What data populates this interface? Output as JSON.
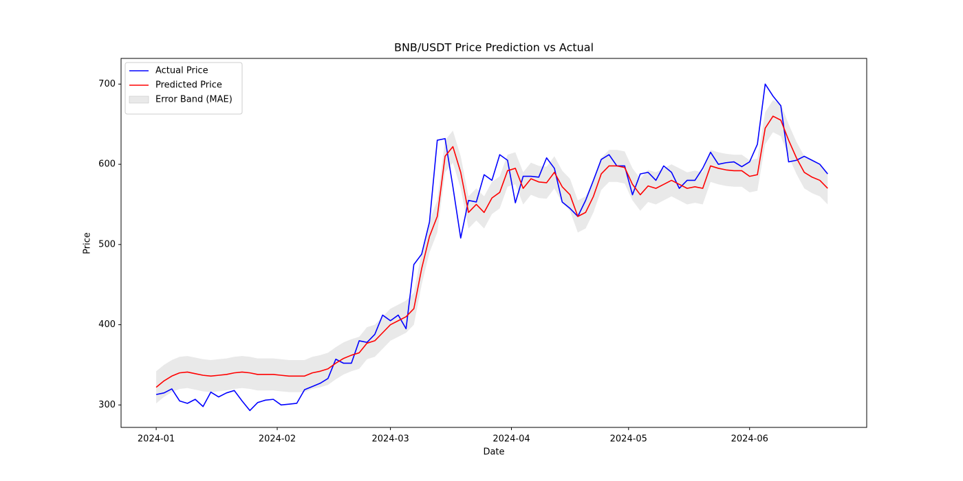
{
  "chart_data": {
    "type": "line",
    "title": "BNB/USDT Price Prediction vs Actual",
    "x_label": "Date",
    "y_label": "Price",
    "x": [
      "2024-01-01",
      "2024-01-03",
      "2024-01-05",
      "2024-01-07",
      "2024-01-09",
      "2024-01-11",
      "2024-01-13",
      "2024-01-15",
      "2024-01-17",
      "2024-01-19",
      "2024-01-21",
      "2024-01-23",
      "2024-01-25",
      "2024-01-27",
      "2024-01-29",
      "2024-01-31",
      "2024-02-02",
      "2024-02-04",
      "2024-02-06",
      "2024-02-08",
      "2024-02-10",
      "2024-02-12",
      "2024-02-14",
      "2024-02-16",
      "2024-02-18",
      "2024-02-20",
      "2024-02-22",
      "2024-02-24",
      "2024-02-26",
      "2024-02-28",
      "2024-03-01",
      "2024-03-03",
      "2024-03-05",
      "2024-03-07",
      "2024-03-09",
      "2024-03-11",
      "2024-03-13",
      "2024-03-15",
      "2024-03-17",
      "2024-03-19",
      "2024-03-21",
      "2024-03-23",
      "2024-03-25",
      "2024-03-27",
      "2024-03-29",
      "2024-03-31",
      "2024-04-02",
      "2024-04-04",
      "2024-04-06",
      "2024-04-08",
      "2024-04-10",
      "2024-04-12",
      "2024-04-14",
      "2024-04-16",
      "2024-04-18",
      "2024-04-20",
      "2024-04-22",
      "2024-04-24",
      "2024-04-26",
      "2024-04-28",
      "2024-04-30",
      "2024-05-02",
      "2024-05-04",
      "2024-05-06",
      "2024-05-08",
      "2024-05-10",
      "2024-05-12",
      "2024-05-14",
      "2024-05-16",
      "2024-05-18",
      "2024-05-20",
      "2024-05-22",
      "2024-05-24",
      "2024-05-26",
      "2024-05-28",
      "2024-05-30",
      "2024-06-01",
      "2024-06-03",
      "2024-06-05",
      "2024-06-07",
      "2024-06-09",
      "2024-06-11",
      "2024-06-13",
      "2024-06-15",
      "2024-06-17",
      "2024-06-19",
      "2024-06-21"
    ],
    "series": [
      {
        "name": "Actual Price",
        "color": "#0000ff",
        "values": [
          313,
          315,
          320,
          305,
          302,
          307,
          298,
          316,
          310,
          315,
          318,
          305,
          293,
          303,
          306,
          307,
          300,
          301,
          302,
          319,
          323,
          327,
          333,
          357,
          352,
          352,
          380,
          378,
          388,
          412,
          405,
          412,
          395,
          475,
          488,
          528,
          630,
          632,
          572,
          508,
          555,
          553,
          587,
          580,
          612,
          605,
          552,
          585,
          585,
          584,
          608,
          595,
          553,
          545,
          535,
          555,
          580,
          606,
          612,
          598,
          598,
          562,
          588,
          590,
          580,
          598,
          590,
          570,
          580,
          580,
          595,
          615,
          600,
          602,
          603,
          597,
          603,
          625,
          700,
          685,
          673,
          603,
          605,
          610,
          605,
          600,
          588
        ]
      },
      {
        "name": "Predicted Price",
        "color": "#ff0000",
        "values": [
          322,
          330,
          336,
          340,
          341,
          339,
          337,
          336,
          337,
          338,
          340,
          341,
          340,
          338,
          338,
          338,
          337,
          336,
          336,
          336,
          340,
          342,
          345,
          352,
          358,
          362,
          365,
          377,
          380,
          390,
          400,
          405,
          410,
          420,
          470,
          510,
          535,
          610,
          622,
          590,
          540,
          550,
          540,
          558,
          565,
          592,
          595,
          570,
          582,
          578,
          577,
          590,
          572,
          562,
          535,
          540,
          560,
          588,
          598,
          598,
          596,
          575,
          562,
          573,
          570,
          575,
          580,
          575,
          570,
          572,
          570,
          598,
          595,
          593,
          592,
          592,
          585,
          587,
          645,
          660,
          655,
          630,
          608,
          590,
          584,
          580,
          570
        ]
      }
    ],
    "band": {
      "name": "Error Band (MAE)",
      "color": "#d3d3d3",
      "error": 20
    },
    "xlim": [
      "2023-12-23",
      "2024-07-01"
    ],
    "xticks": [
      {
        "value": "2024-01-01",
        "label": "2024-01"
      },
      {
        "value": "2024-02-01",
        "label": "2024-02"
      },
      {
        "value": "2024-03-01",
        "label": "2024-03"
      },
      {
        "value": "2024-04-01",
        "label": "2024-04"
      },
      {
        "value": "2024-05-01",
        "label": "2024-05"
      },
      {
        "value": "2024-06-01",
        "label": "2024-06"
      }
    ],
    "ylim": [
      272,
      732
    ],
    "yticks": [
      300,
      400,
      500,
      600,
      700
    ],
    "grid": false,
    "legend": "upper left"
  }
}
